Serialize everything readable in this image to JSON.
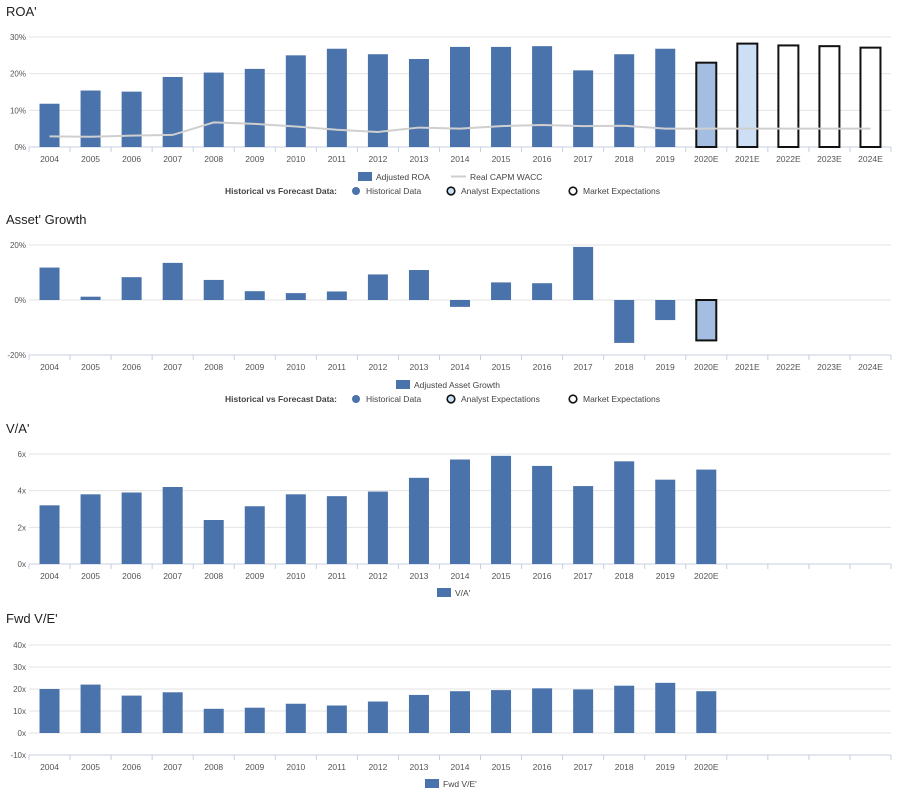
{
  "legend_common": {
    "label": "Historical vs Forecast Data:",
    "historical": "Historical Data",
    "analyst": "Analyst Expectations",
    "market": "Market Expectations"
  },
  "colors": {
    "historical": "#4a72ab",
    "analyst_2020": "#a3bee0",
    "analyst_2021": "#cddff5",
    "market_fill": "#ffffff",
    "outline": "#111111",
    "wacc": "#cfcfcf",
    "grid": "#e3e3e3",
    "axis": "#c5cfe0",
    "tick_text": "#555555"
  },
  "chart_data": [
    {
      "id": "roa",
      "type": "bar",
      "title": "ROA'",
      "categories": [
        "2004",
        "2005",
        "2006",
        "2007",
        "2008",
        "2009",
        "2010",
        "2011",
        "2012",
        "2013",
        "2014",
        "2015",
        "2016",
        "2017",
        "2018",
        "2019",
        "2020E",
        "2021E",
        "2022E",
        "2023E",
        "2024E"
      ],
      "series": [
        {
          "name": "Adjusted ROA",
          "type": "bar",
          "values": [
            11.8,
            15.4,
            15.1,
            19.1,
            20.3,
            21.3,
            25.0,
            26.8,
            25.3,
            24.0,
            27.3,
            27.3,
            27.5,
            20.9,
            25.3,
            26.8,
            23.0,
            28.2,
            27.7,
            27.5,
            27.1
          ],
          "kinds": [
            "h",
            "h",
            "h",
            "h",
            "h",
            "h",
            "h",
            "h",
            "h",
            "h",
            "h",
            "h",
            "h",
            "h",
            "h",
            "h",
            "a1",
            "a2",
            "m",
            "m",
            "m"
          ]
        },
        {
          "name": "Real CAPM WACC",
          "type": "line",
          "values": [
            2.9,
            2.8,
            3.1,
            3.3,
            6.7,
            6.3,
            5.6,
            4.7,
            4.1,
            5.3,
            5.0,
            5.7,
            6.0,
            5.7,
            5.8,
            5.0,
            5.0,
            5.0,
            5.0,
            5.0,
            5.0
          ]
        }
      ],
      "yticks": [
        0,
        10,
        20,
        30
      ],
      "tick_labels": [
        "0%",
        "10%",
        "20%",
        "30%"
      ],
      "ylim": [
        0,
        30
      ]
    },
    {
      "id": "asset_growth",
      "type": "bar",
      "title": "Asset' Growth",
      "categories": [
        "2004",
        "2005",
        "2006",
        "2007",
        "2008",
        "2009",
        "2010",
        "2011",
        "2012",
        "2013",
        "2014",
        "2015",
        "2016",
        "2017",
        "2018",
        "2019",
        "2020E",
        "2021E",
        "2022E",
        "2023E",
        "2024E"
      ],
      "series": [
        {
          "name": "Adjusted Asset Growth",
          "type": "bar",
          "values": [
            11.8,
            1.2,
            8.3,
            13.5,
            7.3,
            3.2,
            2.5,
            3.1,
            9.3,
            10.9,
            -2.5,
            6.4,
            6.1,
            19.3,
            -15.6,
            -7.3,
            -14.7,
            null,
            null,
            null,
            null
          ],
          "kinds": [
            "h",
            "h",
            "h",
            "h",
            "h",
            "h",
            "h",
            "h",
            "h",
            "h",
            "h",
            "h",
            "h",
            "h",
            "h",
            "h",
            "a1",
            "h",
            "h",
            "h",
            "h"
          ]
        }
      ],
      "yticks": [
        -20,
        0,
        20
      ],
      "tick_labels": [
        "-20%",
        "0%",
        "20%"
      ],
      "ylim": [
        -20,
        20
      ]
    },
    {
      "id": "va",
      "type": "bar",
      "title": "V/A'",
      "categories": [
        "2004",
        "2005",
        "2006",
        "2007",
        "2008",
        "2009",
        "2010",
        "2011",
        "2012",
        "2013",
        "2014",
        "2015",
        "2016",
        "2017",
        "2018",
        "2019",
        "2020E",
        "",
        "",
        "",
        ""
      ],
      "series": [
        {
          "name": "V/A'",
          "type": "bar",
          "values": [
            3.2,
            3.8,
            3.9,
            4.2,
            2.4,
            3.15,
            3.8,
            3.7,
            3.95,
            4.7,
            5.7,
            5.9,
            5.35,
            4.25,
            5.6,
            4.6,
            5.15,
            null,
            null,
            null,
            null
          ]
        }
      ],
      "yticks": [
        0,
        2,
        4,
        6
      ],
      "tick_labels": [
        "0x",
        "2x",
        "4x",
        "6x"
      ],
      "ylim": [
        0,
        6
      ]
    },
    {
      "id": "fwd_ve",
      "type": "bar",
      "title": "Fwd V/E'",
      "categories": [
        "2004",
        "2005",
        "2006",
        "2007",
        "2008",
        "2009",
        "2010",
        "2011",
        "2012",
        "2013",
        "2014",
        "2015",
        "2016",
        "2017",
        "2018",
        "2019",
        "2020E",
        "",
        "",
        "",
        ""
      ],
      "series": [
        {
          "name": "Fwd V/E'",
          "type": "bar",
          "values": [
            20.0,
            22.0,
            17.0,
            18.5,
            11.0,
            11.5,
            13.3,
            12.5,
            14.3,
            17.3,
            19.0,
            19.5,
            20.3,
            19.8,
            21.5,
            22.8,
            19.0,
            null,
            null,
            null,
            null
          ]
        }
      ],
      "yticks": [
        -10,
        0,
        10,
        20,
        30,
        40
      ],
      "tick_labels": [
        "-10x",
        "0x",
        "10x",
        "20x",
        "30x",
        "40x"
      ],
      "ylim": [
        -10,
        40
      ]
    }
  ]
}
